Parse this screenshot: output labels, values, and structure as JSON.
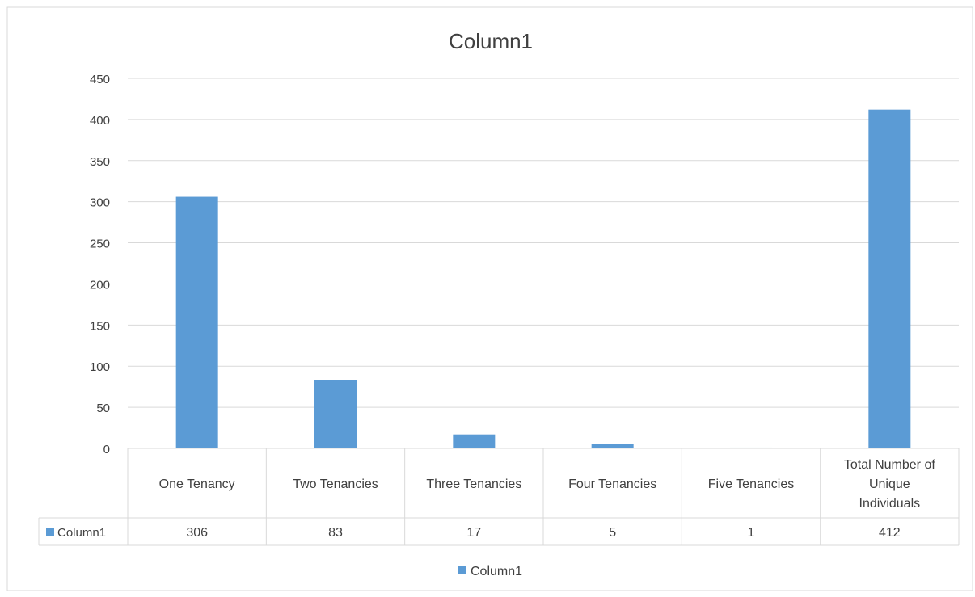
{
  "chart_data": {
    "type": "bar",
    "title": "Column1",
    "categories": [
      "One Tenancy",
      "Two Tenancies",
      "Three Tenancies",
      "Four Tenancies",
      "Five Tenancies",
      "Total Number of Unique Individuals"
    ],
    "series": [
      {
        "name": "Column1",
        "values": [
          306,
          83,
          17,
          5,
          1,
          412
        ]
      }
    ],
    "ylim": [
      0,
      450
    ],
    "yticks": [
      0,
      50,
      100,
      150,
      200,
      250,
      300,
      350,
      400,
      450
    ],
    "grid": true,
    "data_table": true,
    "legend": "bottom",
    "color": "#5b9bd5"
  }
}
